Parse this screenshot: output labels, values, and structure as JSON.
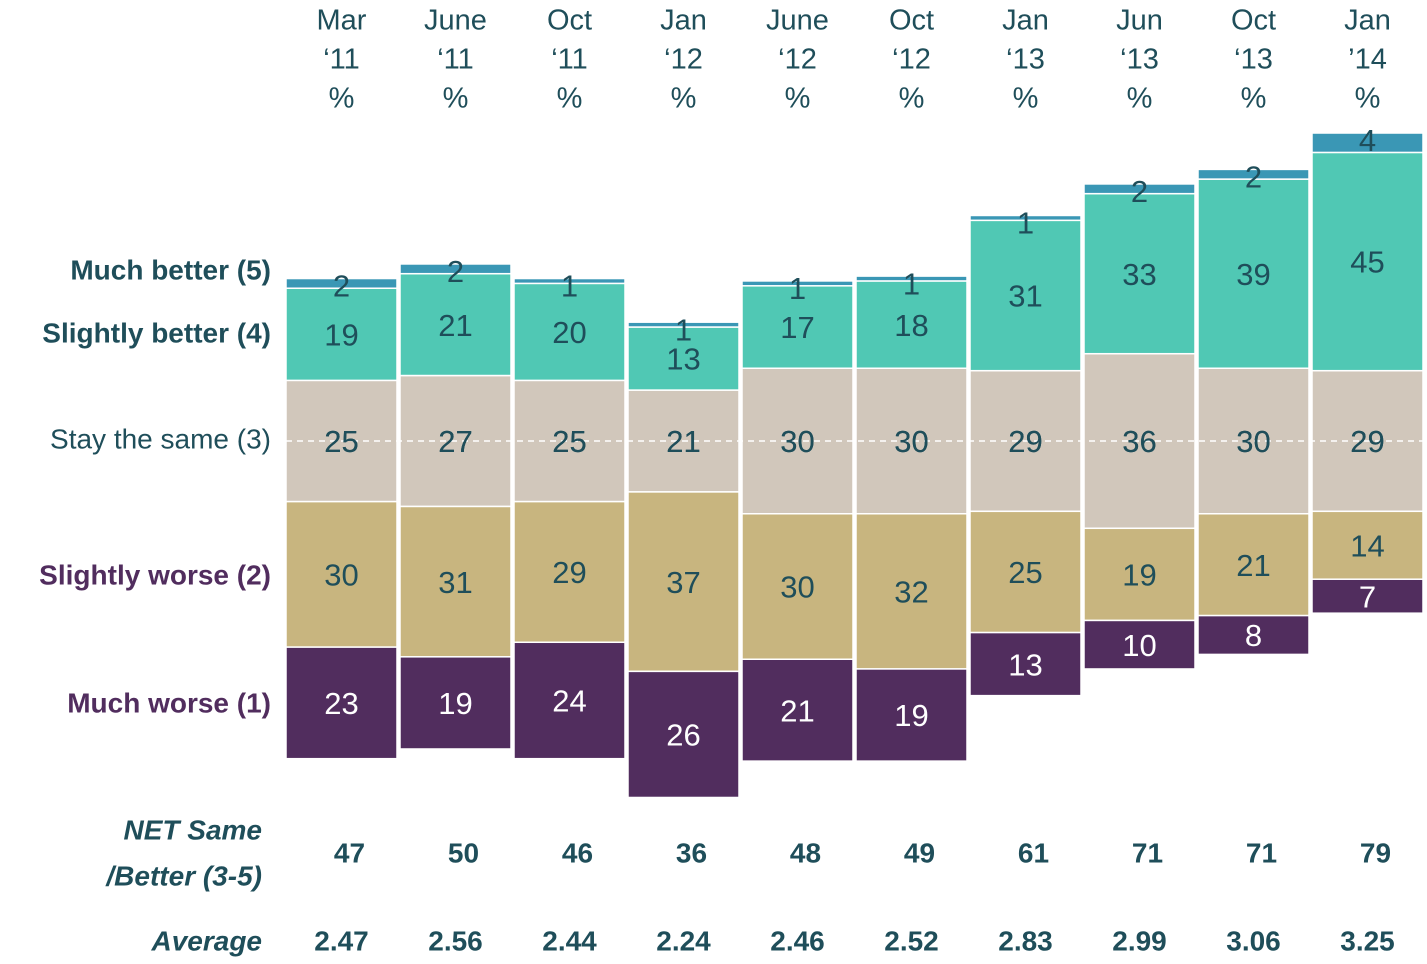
{
  "chart_data": {
    "type": "diverging-stacked-bar",
    "categories": [
      [
        "Mar",
        "‘11"
      ],
      [
        "June",
        "‘11"
      ],
      [
        "Oct",
        "‘11"
      ],
      [
        "Jan",
        "‘12"
      ],
      [
        "June",
        "‘12"
      ],
      [
        "Oct",
        "‘12"
      ],
      [
        "Jan",
        "‘13"
      ],
      [
        "Jun",
        "‘13"
      ],
      [
        "Oct",
        "‘13"
      ],
      [
        "Jan",
        "’14"
      ]
    ],
    "unit": "%",
    "series": [
      {
        "name": "Much worse (1)",
        "color": "#512d5e",
        "label_color": "#512d5e",
        "values": [
          23,
          19,
          24,
          26,
          21,
          19,
          13,
          10,
          8,
          7
        ]
      },
      {
        "name": "Slightly worse (2)",
        "color": "#c8b57f",
        "label_color": "#512d5e",
        "values": [
          30,
          31,
          29,
          37,
          30,
          32,
          25,
          19,
          21,
          14
        ]
      },
      {
        "name": "Stay the same (3)",
        "color": "#d1c7bb",
        "label_color": "#1f4e5a",
        "values": [
          25,
          27,
          25,
          21,
          30,
          30,
          29,
          36,
          30,
          29
        ]
      },
      {
        "name": "Slightly better (4)",
        "color": "#50c8b4",
        "label_color": "#1f4e5a",
        "values": [
          19,
          21,
          20,
          13,
          17,
          18,
          31,
          33,
          39,
          45
        ]
      },
      {
        "name": "Much better (5)",
        "color": "#3a97b5",
        "label_color": "#1f4e5a",
        "values": [
          2,
          2,
          1,
          1,
          1,
          1,
          1,
          2,
          2,
          4
        ]
      }
    ],
    "rows": [
      {
        "label": [
          "NET Same",
          "/Better (3-5)"
        ],
        "values": [
          47,
          50,
          46,
          36,
          48,
          49,
          61,
          71,
          71,
          79
        ]
      },
      {
        "label": [
          "Average"
        ],
        "values": [
          2.47,
          2.56,
          2.44,
          2.24,
          2.46,
          2.52,
          2.83,
          2.99,
          3.06,
          3.25
        ]
      }
    ]
  }
}
